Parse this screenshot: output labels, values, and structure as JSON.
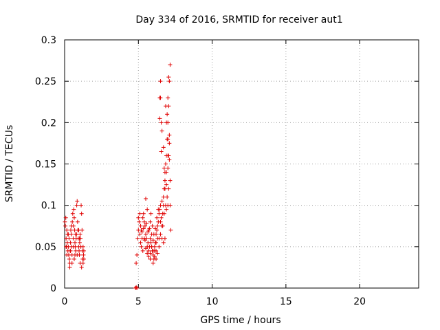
{
  "chart_data": {
    "type": "scatter",
    "title": "Day 334 of 2016, SRMTID for receiver aut1",
    "xlabel": "GPS time / hours",
    "ylabel": "SRMTID / TECUs",
    "xlim": [
      0,
      24
    ],
    "ylim": [
      0,
      0.3
    ],
    "xticks": [
      0,
      5,
      10,
      15,
      20
    ],
    "xtick_labels": [
      "0",
      "5",
      "10",
      "15",
      "20"
    ],
    "yticks": [
      0,
      0.05,
      0.1,
      0.15,
      0.2,
      0.25,
      0.3
    ],
    "ytick_labels": [
      "0",
      "0.05",
      "0.1",
      "0.15",
      "0.2",
      "0.25",
      "0.3"
    ],
    "grid": true,
    "marker": "+",
    "colors": {
      "points": "#e00000",
      "grid": "#a0a0a0",
      "axes": "#000000"
    },
    "points": [
      [
        0.02,
        0.08
      ],
      [
        0.05,
        0.075
      ],
      [
        0.08,
        0.085
      ],
      [
        0.1,
        0.06
      ],
      [
        0.12,
        0.05
      ],
      [
        0.15,
        0.07
      ],
      [
        0.18,
        0.055
      ],
      [
        0.2,
        0.065
      ],
      [
        0.22,
        0.045
      ],
      [
        0.25,
        0.05
      ],
      [
        0.28,
        0.04
      ],
      [
        0.3,
        0.06
      ],
      [
        0.32,
        0.035
      ],
      [
        0.35,
        0.03
      ],
      [
        0.38,
        0.045
      ],
      [
        0.4,
        0.055
      ],
      [
        0.42,
        0.07
      ],
      [
        0.45,
        0.065
      ],
      [
        0.48,
        0.05
      ],
      [
        0.5,
        0.04
      ],
      [
        0.52,
        0.08
      ],
      [
        0.55,
        0.09
      ],
      [
        0.58,
        0.06
      ],
      [
        0.6,
        0.075
      ],
      [
        0.62,
        0.095
      ],
      [
        0.65,
        0.085
      ],
      [
        0.68,
        0.07
      ],
      [
        0.7,
        0.055
      ],
      [
        0.72,
        0.05
      ],
      [
        0.75,
        0.045
      ],
      [
        0.78,
        0.06
      ],
      [
        0.8,
        0.065
      ],
      [
        0.82,
        0.1
      ],
      [
        0.85,
        0.105
      ],
      [
        0.88,
        0.08
      ],
      [
        0.9,
        0.07
      ],
      [
        0.92,
        0.06
      ],
      [
        0.95,
        0.05
      ],
      [
        0.98,
        0.045
      ],
      [
        1.0,
        0.04
      ],
      [
        1.02,
        0.055
      ],
      [
        1.05,
        0.065
      ],
      [
        1.08,
        0.06
      ],
      [
        1.1,
        0.05
      ],
      [
        1.12,
        0.1
      ],
      [
        1.15,
        0.09
      ],
      [
        1.18,
        0.07
      ],
      [
        1.2,
        0.045
      ],
      [
        1.22,
        0.035
      ],
      [
        1.25,
        0.03
      ],
      [
        1.28,
        0.04
      ],
      [
        1.3,
        0.045
      ],
      [
        0.15,
        0.04
      ],
      [
        0.35,
        0.025
      ],
      [
        0.5,
        0.03
      ],
      [
        0.65,
        0.035
      ],
      [
        0.85,
        0.04
      ],
      [
        1.05,
        0.03
      ],
      [
        1.15,
        0.025
      ],
      [
        0.25,
        0.065
      ],
      [
        0.45,
        0.075
      ],
      [
        0.6,
        0.05
      ],
      [
        0.75,
        0.065
      ],
      [
        0.95,
        0.07
      ],
      [
        1.25,
        0.05
      ],
      [
        0.1,
        0.05
      ],
      [
        0.4,
        0.045
      ],
      [
        0.7,
        0.04
      ],
      [
        1.0,
        0.06
      ],
      [
        1.3,
        0.035
      ],
      [
        4.8,
        0.0
      ],
      [
        4.85,
        0.001
      ],
      [
        4.9,
        0.0
      ],
      [
        4.85,
        0.03
      ],
      [
        4.9,
        0.04
      ],
      [
        4.95,
        0.06
      ],
      [
        5.0,
        0.07
      ],
      [
        5.05,
        0.08
      ],
      [
        5.1,
        0.065
      ],
      [
        5.15,
        0.075
      ],
      [
        5.2,
        0.07
      ],
      [
        5.25,
        0.06
      ],
      [
        5.3,
        0.085
      ],
      [
        5.35,
        0.09
      ],
      [
        5.4,
        0.08
      ],
      [
        5.45,
        0.075
      ],
      [
        5.5,
        0.065
      ],
      [
        5.55,
        0.06
      ],
      [
        5.6,
        0.05
      ],
      [
        5.65,
        0.055
      ],
      [
        5.7,
        0.045
      ],
      [
        5.75,
        0.05
      ],
      [
        5.8,
        0.06
      ],
      [
        5.85,
        0.055
      ],
      [
        5.9,
        0.05
      ],
      [
        5.95,
        0.045
      ],
      [
        6.0,
        0.04
      ],
      [
        6.05,
        0.035
      ],
      [
        6.1,
        0.045
      ],
      [
        6.15,
        0.055
      ],
      [
        6.2,
        0.065
      ],
      [
        6.25,
        0.07
      ],
      [
        6.3,
        0.075
      ],
      [
        6.35,
        0.08
      ],
      [
        6.4,
        0.09
      ],
      [
        6.45,
        0.095
      ],
      [
        6.5,
        0.1
      ],
      [
        6.55,
        0.085
      ],
      [
        6.6,
        0.075
      ],
      [
        6.65,
        0.09
      ],
      [
        6.7,
        0.1
      ],
      [
        6.75,
        0.12
      ],
      [
        6.8,
        0.14
      ],
      [
        6.85,
        0.15
      ],
      [
        6.9,
        0.16
      ],
      [
        6.95,
        0.18
      ],
      [
        7.0,
        0.2
      ],
      [
        7.05,
        0.22
      ],
      [
        7.1,
        0.25
      ],
      [
        7.15,
        0.27
      ],
      [
        6.45,
        0.23
      ],
      [
        6.5,
        0.25
      ],
      [
        6.55,
        0.2
      ],
      [
        6.6,
        0.19
      ],
      [
        6.7,
        0.17
      ],
      [
        6.8,
        0.13
      ],
      [
        6.9,
        0.125
      ],
      [
        7.0,
        0.18
      ],
      [
        7.05,
        0.255
      ],
      [
        7.1,
        0.185
      ],
      [
        7.15,
        0.1
      ],
      [
        7.2,
        0.07
      ],
      [
        6.95,
        0.21
      ],
      [
        5.5,
        0.108
      ],
      [
        5.6,
        0.095
      ],
      [
        5.7,
        0.07
      ],
      [
        5.8,
        0.08
      ],
      [
        5.9,
        0.065
      ],
      [
        6.0,
        0.058
      ],
      [
        6.1,
        0.05
      ],
      [
        6.2,
        0.045
      ],
      [
        6.3,
        0.06
      ],
      [
        6.4,
        0.05
      ],
      [
        6.6,
        0.06
      ],
      [
        6.7,
        0.055
      ],
      [
        6.8,
        0.06
      ],
      [
        6.9,
        0.095
      ],
      [
        7.0,
        0.1
      ],
      [
        5.2,
        0.05
      ],
      [
        5.3,
        0.045
      ],
      [
        5.4,
        0.06
      ],
      [
        5.5,
        0.048
      ],
      [
        5.6,
        0.042
      ],
      [
        5.7,
        0.038
      ],
      [
        5.8,
        0.042
      ],
      [
        5.9,
        0.05
      ],
      [
        6.0,
        0.03
      ],
      [
        6.1,
        0.038
      ],
      [
        6.2,
        0.055
      ],
      [
        6.3,
        0.042
      ],
      [
        6.4,
        0.06
      ],
      [
        6.5,
        0.08
      ],
      [
        6.6,
        0.105
      ],
      [
        6.7,
        0.11
      ],
      [
        6.8,
        0.12
      ],
      [
        6.9,
        0.14
      ],
      [
        7.0,
        0.16
      ],
      [
        7.1,
        0.175
      ],
      [
        6.45,
        0.205
      ],
      [
        6.55,
        0.165
      ],
      [
        6.75,
        0.145
      ],
      [
        6.85,
        0.22
      ],
      [
        7.05,
        0.16
      ],
      [
        5.0,
        0.085
      ],
      [
        5.1,
        0.09
      ],
      [
        5.15,
        0.055
      ],
      [
        5.25,
        0.068
      ],
      [
        5.35,
        0.072
      ],
      [
        5.45,
        0.058
      ],
      [
        5.55,
        0.078
      ],
      [
        5.65,
        0.068
      ],
      [
        5.75,
        0.072
      ],
      [
        5.85,
        0.09
      ],
      [
        5.95,
        0.075
      ],
      [
        6.05,
        0.065
      ],
      [
        6.15,
        0.072
      ],
      [
        6.25,
        0.085
      ],
      [
        6.35,
        0.095
      ],
      [
        6.5,
        0.065
      ],
      [
        6.65,
        0.075
      ],
      [
        6.75,
        0.09
      ],
      [
        6.85,
        0.1
      ],
      [
        6.95,
        0.11
      ],
      [
        7.0,
        0.145
      ],
      [
        7.1,
        0.155
      ],
      [
        7.05,
        0.12
      ],
      [
        7.15,
        0.13
      ],
      [
        6.5,
        0.23
      ],
      [
        6.9,
        0.2
      ],
      [
        7.0,
        0.23
      ],
      [
        5.8,
        0.035
      ],
      [
        6.0,
        0.045
      ],
      [
        6.2,
        0.035
      ]
    ]
  }
}
